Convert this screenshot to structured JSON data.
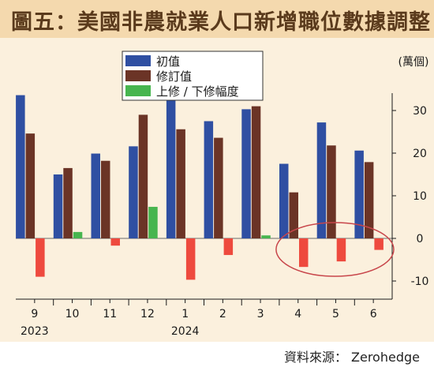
{
  "title": "圖五：美國非農就業人口新增職位數據調整",
  "source": "資料來源： Zerohedge",
  "chart_data": {
    "type": "bar",
    "categories": [
      "9",
      "10",
      "11",
      "12",
      "1",
      "2",
      "3",
      "4",
      "5",
      "6"
    ],
    "year_labels": [
      {
        "category_index": 0,
        "label": "2023"
      },
      {
        "category_index": 4,
        "label": "2024"
      }
    ],
    "unit": "(萬個)",
    "series": [
      {
        "name": "初值",
        "color": "#2f4fa2",
        "values": [
          33.6,
          15.0,
          19.9,
          21.6,
          35.3,
          27.5,
          30.3,
          17.5,
          27.2,
          20.6
        ]
      },
      {
        "name": "修訂值",
        "color": "#6b3426",
        "values": [
          24.6,
          16.5,
          18.2,
          29.0,
          25.6,
          23.6,
          31.0,
          10.8,
          21.8,
          17.9
        ]
      },
      {
        "name": "上修 / 下修幅度",
        "color": "#47b54f",
        "values": [
          -9.0,
          1.5,
          -1.7,
          7.4,
          -9.7,
          -3.9,
          0.7,
          -6.7,
          -5.4,
          -2.7
        ]
      }
    ],
    "negative_color": "#ee4a3e",
    "ylim": [
      -14,
      40
    ],
    "yticks": [
      -10,
      0,
      10,
      20,
      30
    ],
    "legend_position": "top-left",
    "annotation": {
      "type": "ellipse",
      "color": "#c8464b",
      "categories": [
        "4",
        "5",
        "6"
      ]
    },
    "grid": false
  }
}
